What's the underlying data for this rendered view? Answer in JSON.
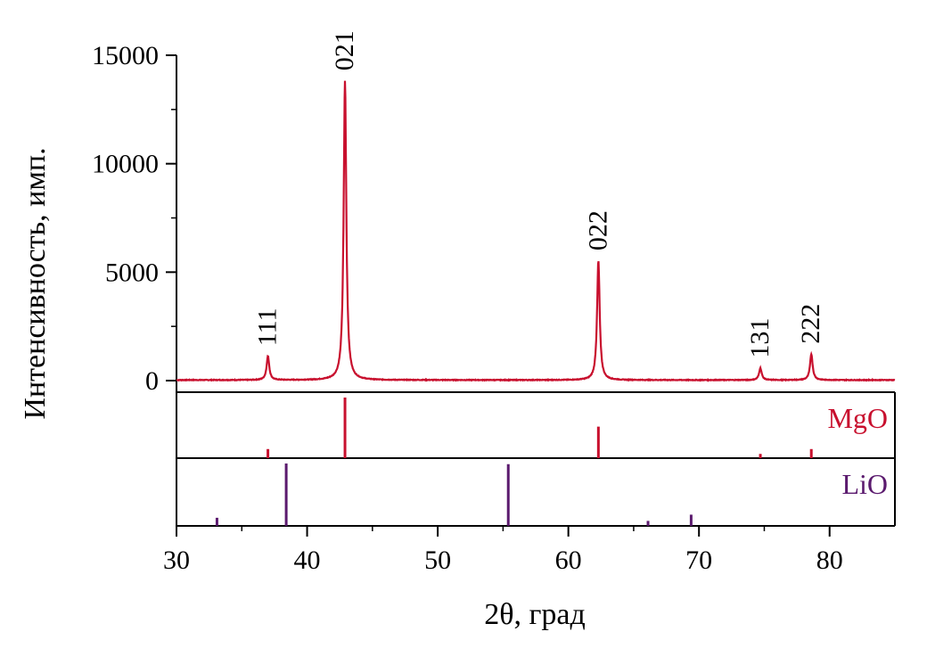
{
  "chart_data": {
    "type": "line",
    "xlabel": "2θ, град",
    "ylabel": "Интенсивность, имп.",
    "xlim": [
      30,
      85
    ],
    "ylim": [
      0,
      15000
    ],
    "x_ticks": [
      30,
      40,
      50,
      60,
      70,
      80
    ],
    "y_ticks": [
      0,
      5000,
      10000,
      15000
    ],
    "grid": false,
    "line_color": "#c8102e",
    "peaks": [
      {
        "label": "111",
        "x": 37.0,
        "y": 1100,
        "width": 0.18
      },
      {
        "label": "021",
        "x": 42.9,
        "y": 13800,
        "width": 0.18
      },
      {
        "label": "022",
        "x": 62.3,
        "y": 5500,
        "width": 0.18
      },
      {
        "label": "131",
        "x": 74.7,
        "y": 550,
        "width": 0.18
      },
      {
        "label": "222",
        "x": 78.6,
        "y": 1200,
        "width": 0.18
      }
    ],
    "reference_patterns": [
      {
        "name": "MgO",
        "color": "#c8102e",
        "lines": [
          {
            "x": 37.0,
            "rel": 0.15
          },
          {
            "x": 42.9,
            "rel": 1.0
          },
          {
            "x": 62.3,
            "rel": 0.52
          },
          {
            "x": 74.7,
            "rel": 0.07
          },
          {
            "x": 78.6,
            "rel": 0.15
          }
        ]
      },
      {
        "name": "LiO",
        "color": "#5b1a6e",
        "lines": [
          {
            "x": 33.1,
            "rel": 0.13
          },
          {
            "x": 38.4,
            "rel": 1.0
          },
          {
            "x": 55.4,
            "rel": 0.99
          },
          {
            "x": 66.1,
            "rel": 0.08
          },
          {
            "x": 69.4,
            "rel": 0.18
          }
        ]
      }
    ]
  }
}
